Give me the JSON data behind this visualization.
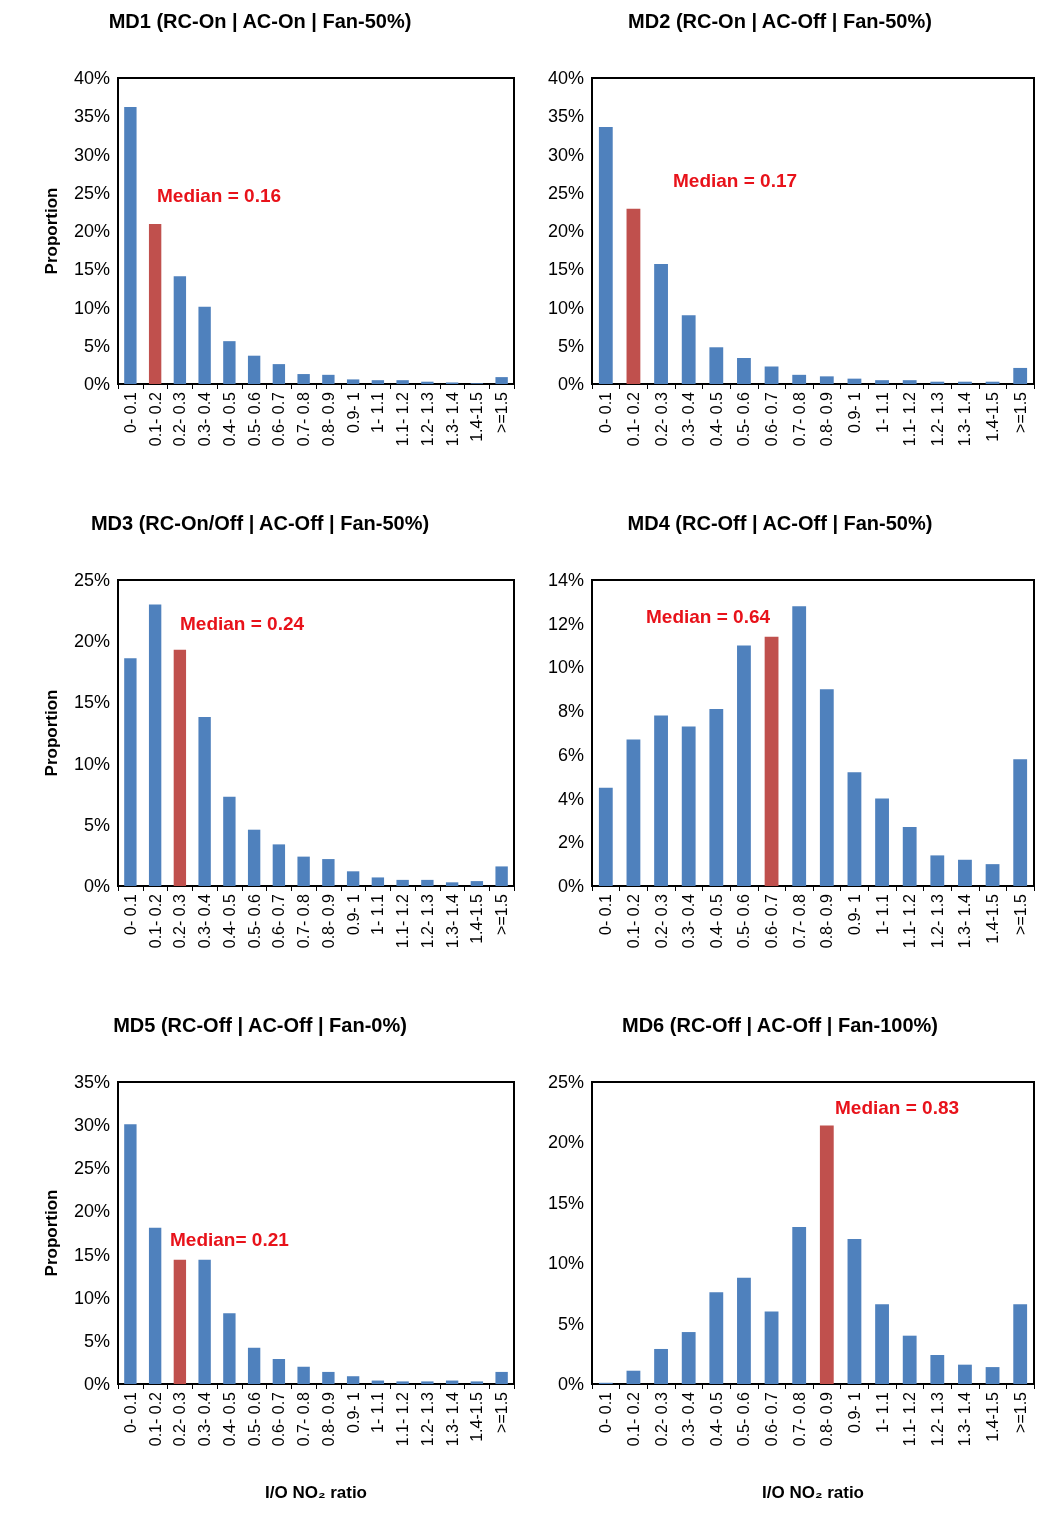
{
  "chart_data": [
    {
      "type": "bar",
      "title": "MD1 (RC-On | AC-On | Fan-50%)",
      "ylabel": "Proportion",
      "categories": [
        "0- 0.1",
        "0.1- 0.2",
        "0.2- 0.3",
        "0.3- 0.4",
        "0.4- 0.5",
        "0.5- 0.6",
        "0.6- 0.7",
        "0.7- 0.8",
        "0.8- 0.9",
        "0.9- 1",
        "1- 1.1",
        "1.1- 1.2",
        "1.2- 1.3",
        "1.3- 1.4",
        "1.4-1.5",
        ">=1.5"
      ],
      "values": [
        36.2,
        20.9,
        14.1,
        10.1,
        5.6,
        3.7,
        2.6,
        1.3,
        1.2,
        0.6,
        0.5,
        0.5,
        0.3,
        0.2,
        0.1,
        0.9
      ],
      "colors": [
        "#4f81bd",
        "#c0504d",
        "#4f81bd",
        "#4f81bd",
        "#4f81bd",
        "#4f81bd",
        "#4f81bd",
        "#4f81bd",
        "#4f81bd",
        "#4f81bd",
        "#4f81bd",
        "#4f81bd",
        "#4f81bd",
        "#4f81bd",
        "#4f81bd",
        "#4f81bd"
      ],
      "ylim": [
        0,
        40
      ],
      "yticks": [
        {
          "value": 0,
          "label": "0%"
        },
        {
          "value": 5,
          "label": "5%"
        },
        {
          "value": 10,
          "label": "10%"
        },
        {
          "value": 15,
          "label": "15%"
        },
        {
          "value": 20,
          "label": "20%"
        },
        {
          "value": 25,
          "label": "25%"
        },
        {
          "value": 30,
          "label": "30%"
        },
        {
          "value": 35,
          "label": "35%"
        },
        {
          "value": 40,
          "label": "40%"
        }
      ],
      "annotations": [
        "Median = 0.16"
      ]
    },
    {
      "type": "bar",
      "title": "MD2 (RC-On | AC-Off | Fan-50%)",
      "categories": [
        "0- 0.1",
        "0.1- 0.2",
        "0.2- 0.3",
        "0.3- 0.4",
        "0.4- 0.5",
        "0.5- 0.6",
        "0.6- 0.7",
        "0.7- 0.8",
        "0.8- 0.9",
        "0.9- 1",
        "1- 1.1",
        "1.1- 1.2",
        "1.2- 1.3",
        "1.3- 1.4",
        "1.4-1.5",
        ">=1.5"
      ],
      "values": [
        33.6,
        22.9,
        15.7,
        9.0,
        4.8,
        3.4,
        2.3,
        1.2,
        1.0,
        0.7,
        0.5,
        0.5,
        0.3,
        0.3,
        0.3,
        2.1
      ],
      "colors": [
        "#4f81bd",
        "#c0504d",
        "#4f81bd",
        "#4f81bd",
        "#4f81bd",
        "#4f81bd",
        "#4f81bd",
        "#4f81bd",
        "#4f81bd",
        "#4f81bd",
        "#4f81bd",
        "#4f81bd",
        "#4f81bd",
        "#4f81bd",
        "#4f81bd",
        "#4f81bd"
      ],
      "ylim": [
        0,
        40
      ],
      "yticks": [
        {
          "value": 0,
          "label": "0%"
        },
        {
          "value": 5,
          "label": "5%"
        },
        {
          "value": 10,
          "label": "10%"
        },
        {
          "value": 15,
          "label": "15%"
        },
        {
          "value": 20,
          "label": "20%"
        },
        {
          "value": 25,
          "label": "25%"
        },
        {
          "value": 30,
          "label": "30%"
        },
        {
          "value": 35,
          "label": "35%"
        },
        {
          "value": 40,
          "label": "40%"
        }
      ],
      "annotations": [
        "Median = 0.17"
      ]
    },
    {
      "type": "bar",
      "title": "MD3 (RC-On/Off | AC-Off | Fan-50%)",
      "ylabel": "Proportion",
      "categories": [
        "0- 0.1",
        "0.1- 0.2",
        "0.2- 0.3",
        "0.3- 0.4",
        "0.4- 0.5",
        "0.5- 0.6",
        "0.6- 0.7",
        "0.7- 0.8",
        "0.8- 0.9",
        "0.9- 1",
        "1- 1.1",
        "1.1- 1.2",
        "1.2- 1.3",
        "1.3- 1.4",
        "1.4-1.5",
        ">=1.5"
      ],
      "values": [
        18.6,
        23.0,
        19.3,
        13.8,
        7.3,
        4.6,
        3.4,
        2.4,
        2.2,
        1.2,
        0.7,
        0.5,
        0.5,
        0.3,
        0.4,
        1.6
      ],
      "colors": [
        "#4f81bd",
        "#4f81bd",
        "#c0504d",
        "#4f81bd",
        "#4f81bd",
        "#4f81bd",
        "#4f81bd",
        "#4f81bd",
        "#4f81bd",
        "#4f81bd",
        "#4f81bd",
        "#4f81bd",
        "#4f81bd",
        "#4f81bd",
        "#4f81bd",
        "#4f81bd"
      ],
      "ylim": [
        0,
        25
      ],
      "yticks": [
        {
          "value": 0,
          "label": "0%"
        },
        {
          "value": 5,
          "label": "5%"
        },
        {
          "value": 10,
          "label": "10%"
        },
        {
          "value": 15,
          "label": "15%"
        },
        {
          "value": 20,
          "label": "20%"
        },
        {
          "value": 25,
          "label": "25%"
        }
      ],
      "annotations": [
        "Median = 0.24"
      ]
    },
    {
      "type": "bar",
      "title": "MD4 (RC-Off | AC-Off | Fan-50%)",
      "categories": [
        "0- 0.1",
        "0.1- 0.2",
        "0.2- 0.3",
        "0.3- 0.4",
        "0.4- 0.5",
        "0.5- 0.6",
        "0.6- 0.7",
        "0.7- 0.8",
        "0.8- 0.9",
        "0.9- 1",
        "1- 1.1",
        "1.1- 1.2",
        "1.2- 1.3",
        "1.3- 1.4",
        "1.4-1.5",
        ">=1.5"
      ],
      "values": [
        4.5,
        6.7,
        7.8,
        7.3,
        8.1,
        11.0,
        11.4,
        12.8,
        9.0,
        5.2,
        4.0,
        2.7,
        1.4,
        1.2,
        1.0,
        5.8
      ],
      "colors": [
        "#4f81bd",
        "#4f81bd",
        "#4f81bd",
        "#4f81bd",
        "#4f81bd",
        "#4f81bd",
        "#c0504d",
        "#4f81bd",
        "#4f81bd",
        "#4f81bd",
        "#4f81bd",
        "#4f81bd",
        "#4f81bd",
        "#4f81bd",
        "#4f81bd",
        "#4f81bd"
      ],
      "ylim": [
        0,
        14
      ],
      "yticks": [
        {
          "value": 0,
          "label": "0%"
        },
        {
          "value": 2,
          "label": "2%"
        },
        {
          "value": 4,
          "label": "4%"
        },
        {
          "value": 6,
          "label": "6%"
        },
        {
          "value": 8,
          "label": "8%"
        },
        {
          "value": 10,
          "label": "10%"
        },
        {
          "value": 12,
          "label": "12%"
        },
        {
          "value": 14,
          "label": "14%"
        }
      ],
      "annotations": [
        "Median = 0.64"
      ]
    },
    {
      "type": "bar",
      "title": "MD5 (RC-Off | AC-Off | Fan-0%)",
      "ylabel": "Proportion",
      "xlabel": "I/O NO₂ ratio",
      "categories": [
        "0- 0.1",
        "0.1- 0.2",
        "0.2- 0.3",
        "0.3- 0.4",
        "0.4- 0.5",
        "0.5- 0.6",
        "0.6- 0.7",
        "0.7- 0.8",
        "0.8- 0.9",
        "0.9- 1",
        "1- 1.1",
        "1.1- 1.2",
        "1.2- 1.3",
        "1.3- 1.4",
        "1.4-1.5",
        ">=1.5"
      ],
      "values": [
        30.1,
        18.1,
        14.4,
        14.4,
        8.2,
        4.2,
        2.9,
        2.0,
        1.4,
        0.9,
        0.4,
        0.3,
        0.3,
        0.4,
        0.3,
        1.4
      ],
      "colors": [
        "#4f81bd",
        "#4f81bd",
        "#c0504d",
        "#4f81bd",
        "#4f81bd",
        "#4f81bd",
        "#4f81bd",
        "#4f81bd",
        "#4f81bd",
        "#4f81bd",
        "#4f81bd",
        "#4f81bd",
        "#4f81bd",
        "#4f81bd",
        "#4f81bd",
        "#4f81bd"
      ],
      "ylim": [
        0,
        35
      ],
      "yticks": [
        {
          "value": 0,
          "label": "0%"
        },
        {
          "value": 5,
          "label": "5%"
        },
        {
          "value": 10,
          "label": "10%"
        },
        {
          "value": 15,
          "label": "15%"
        },
        {
          "value": 20,
          "label": "20%"
        },
        {
          "value": 25,
          "label": "25%"
        },
        {
          "value": 30,
          "label": "30%"
        },
        {
          "value": 35,
          "label": "35%"
        }
      ],
      "annotations": [
        "Median= 0.21"
      ]
    },
    {
      "type": "bar",
      "title": "MD6 (RC-Off | AC-Off | Fan-100%)",
      "xlabel": "I/O NO₂ ratio",
      "categories": [
        "0- 0.1",
        "0.1- 0.2",
        "0.2- 0.3",
        "0.3- 0.4",
        "0.4- 0.5",
        "0.5- 0.6",
        "0.6- 0.7",
        "0.7- 0.8",
        "0.8- 0.9",
        "0.9- 1",
        "1- 1.1",
        "1.1- 1.2",
        "1.2- 1.3",
        "1.3- 1.4",
        "1.4-1.5",
        ">=1.5"
      ],
      "values": [
        0.1,
        1.1,
        2.9,
        4.3,
        7.6,
        8.8,
        6.0,
        13.0,
        21.4,
        12.0,
        6.6,
        4.0,
        2.4,
        1.6,
        1.4,
        6.6
      ],
      "colors": [
        "#4f81bd",
        "#4f81bd",
        "#4f81bd",
        "#4f81bd",
        "#4f81bd",
        "#4f81bd",
        "#4f81bd",
        "#4f81bd",
        "#c0504d",
        "#4f81bd",
        "#4f81bd",
        "#4f81bd",
        "#4f81bd",
        "#4f81bd",
        "#4f81bd",
        "#4f81bd"
      ],
      "ylim": [
        0,
        25
      ],
      "yticks": [
        {
          "value": 0,
          "label": "0%"
        },
        {
          "value": 5,
          "label": "5%"
        },
        {
          "value": 10,
          "label": "10%"
        },
        {
          "value": 15,
          "label": "15%"
        },
        {
          "value": 20,
          "label": "20%"
        },
        {
          "value": 25,
          "label": "25%"
        }
      ],
      "annotations": [
        "Median = 0.83"
      ]
    }
  ]
}
